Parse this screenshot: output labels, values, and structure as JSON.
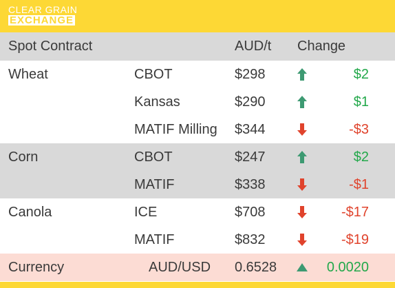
{
  "brand": {
    "line1": "CLEAR GRAIN",
    "line2": "EXCHANGE",
    "color": "#fdd835"
  },
  "header": {
    "col_contract": "Spot Contract",
    "col_price": "AUD/t",
    "col_change": "Change"
  },
  "rows": [
    {
      "commodity": "Wheat",
      "exchange": "CBOT",
      "price": "$298",
      "direction": "up",
      "change": "$2"
    },
    {
      "commodity": "",
      "exchange": "Kansas",
      "price": "$290",
      "direction": "up",
      "change": "$1"
    },
    {
      "commodity": "",
      "exchange": "MATIF Milling",
      "price": "$344",
      "direction": "down",
      "change": "-$3"
    },
    {
      "commodity": "Corn",
      "exchange": "CBOT",
      "price": "$247",
      "direction": "up",
      "change": "$2"
    },
    {
      "commodity": "",
      "exchange": "MATIF",
      "price": "$338",
      "direction": "down",
      "change": "-$1"
    },
    {
      "commodity": "Canola",
      "exchange": "ICE",
      "price": "$708",
      "direction": "down",
      "change": "-$17"
    },
    {
      "commodity": "",
      "exchange": "MATIF",
      "price": "$832",
      "direction": "down",
      "change": "-$19"
    }
  ],
  "currency": {
    "label": "Currency",
    "pair": "AUD/USD",
    "rate": "0.6528",
    "direction": "up",
    "change": "0.0020"
  },
  "colors": {
    "up": "#22a84a",
    "down": "#e0432c",
    "arrow_up": "#3d9a72",
    "arrow_down": "#e0432c",
    "header_bg": "#d9d9d9",
    "currency_bg": "#fcdcd4"
  },
  "icons": {
    "up": "arrow-up-icon",
    "down": "arrow-down-icon",
    "currency_up": "triangle-up-icon"
  }
}
